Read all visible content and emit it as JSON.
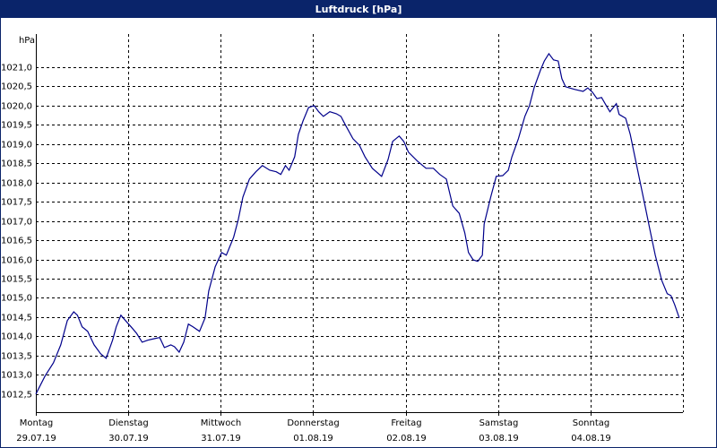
{
  "chart_data": {
    "type": "line",
    "title": "Luftdruck [hPa]",
    "y_label": "hPa",
    "xlim": [
      0,
      7
    ],
    "ylim": [
      1012.03,
      1021.86
    ],
    "grid": true,
    "xticks": [
      {
        "value": 0,
        "label": [
          "Montag",
          "29.07.19"
        ]
      },
      {
        "value": 1,
        "label": [
          "Dienstag",
          "30.07.19"
        ]
      },
      {
        "value": 2,
        "label": [
          "Mittwoch",
          "31.07.19"
        ]
      },
      {
        "value": 3,
        "label": [
          "Donnerstag",
          "01.08.19"
        ]
      },
      {
        "value": 4,
        "label": [
          "Freitag",
          "02.08.19"
        ]
      },
      {
        "value": 5,
        "label": [
          "Samstag",
          "03.08.19"
        ]
      },
      {
        "value": 6,
        "label": [
          "Sonntag",
          "04.08.19"
        ]
      }
    ],
    "yticks": [
      {
        "value": 1012.5,
        "label": "1012,5"
      },
      {
        "value": 1013,
        "label": "1013,0"
      },
      {
        "value": 1013.5,
        "label": "1013,5"
      },
      {
        "value": 1014,
        "label": "1014,0"
      },
      {
        "value": 1014.5,
        "label": "1014,5"
      },
      {
        "value": 1015,
        "label": "1015,0"
      },
      {
        "value": 1015.5,
        "label": "1015,5"
      },
      {
        "value": 1016,
        "label": "1016,0"
      },
      {
        "value": 1016.5,
        "label": "1016,5"
      },
      {
        "value": 1017,
        "label": "1017,0"
      },
      {
        "value": 1017.5,
        "label": "1017,5"
      },
      {
        "value": 1018,
        "label": "1018,0"
      },
      {
        "value": 1018.5,
        "label": "1018,5"
      },
      {
        "value": 1019,
        "label": "1019,0"
      },
      {
        "value": 1019.5,
        "label": "1019,5"
      },
      {
        "value": 1020,
        "label": "1020,0"
      },
      {
        "value": 1020.5,
        "label": "1020,5"
      },
      {
        "value": 1021,
        "label": "1021,0"
      }
    ],
    "series": [
      {
        "color": "#00008b",
        "x": [
          0,
          0.1,
          0.19,
          0.27,
          0.34,
          0.41,
          0.45,
          0.5,
          0.56,
          0.63,
          0.7,
          0.76,
          0.83,
          0.87,
          0.92,
          0.97,
          1.03,
          1.09,
          1.15,
          1.21,
          1.28,
          1.34,
          1.39,
          1.46,
          1.5,
          1.55,
          1.6,
          1.65,
          1.7,
          1.77,
          1.83,
          1.87,
          1.94,
          2.01,
          2.06,
          2.14,
          2.19,
          2.24,
          2.31,
          2.38,
          2.45,
          2.53,
          2.6,
          2.65,
          2.7,
          2.74,
          2.8,
          2.84,
          2.89,
          2.95,
          3.01,
          3.06,
          3.11,
          3.18,
          3.25,
          3.3,
          3.35,
          3.43,
          3.5,
          3.56,
          3.64,
          3.74,
          3.81,
          3.86,
          3.93,
          3.98,
          4.03,
          4.13,
          4.22,
          4.3,
          4.37,
          4.44,
          4.51,
          4.58,
          4.64,
          4.68,
          4.73,
          4.78,
          4.83,
          4.85,
          4.92,
          4.98,
          5.05,
          5.11,
          5.15,
          5.22,
          5.29,
          5.34,
          5.39,
          5.46,
          5.5,
          5.55,
          5.6,
          5.65,
          5.69,
          5.73,
          5.83,
          5.92,
          5.97,
          6.02,
          6.07,
          6.12,
          6.17,
          6.21,
          6.28,
          6.31,
          6.38,
          6.43,
          6.5,
          6.58,
          6.65,
          6.7,
          6.77,
          6.83,
          6.87,
          6.91,
          6.96
        ],
        "values": [
          1012.5,
          1012.97,
          1013.31,
          1013.78,
          1014.41,
          1014.64,
          1014.55,
          1014.25,
          1014.13,
          1013.78,
          1013.55,
          1013.43,
          1013.9,
          1014.25,
          1014.55,
          1014.41,
          1014.25,
          1014.08,
          1013.85,
          1013.9,
          1013.94,
          1013.97,
          1013.71,
          1013.78,
          1013.73,
          1013.59,
          1013.85,
          1014.32,
          1014.25,
          1014.13,
          1014.48,
          1015.18,
          1015.81,
          1016.18,
          1016.11,
          1016.58,
          1017.04,
          1017.62,
          1018.09,
          1018.28,
          1018.44,
          1018.32,
          1018.28,
          1018.21,
          1018.44,
          1018.32,
          1018.67,
          1019.25,
          1019.6,
          1019.95,
          1020.0,
          1019.84,
          1019.72,
          1019.84,
          1019.79,
          1019.72,
          1019.49,
          1019.14,
          1018.97,
          1018.67,
          1018.37,
          1018.16,
          1018.6,
          1019.07,
          1019.21,
          1019.07,
          1018.79,
          1018.55,
          1018.37,
          1018.37,
          1018.21,
          1018.09,
          1017.39,
          1017.2,
          1016.69,
          1016.18,
          1015.99,
          1015.95,
          1016.11,
          1016.92,
          1017.62,
          1018.16,
          1018.18,
          1018.32,
          1018.67,
          1019.14,
          1019.72,
          1020.0,
          1020.46,
          1020.93,
          1021.16,
          1021.35,
          1021.19,
          1021.16,
          1020.7,
          1020.49,
          1020.42,
          1020.37,
          1020.46,
          1020.35,
          1020.18,
          1020.21,
          1020.0,
          1019.84,
          1020.05,
          1019.77,
          1019.67,
          1019.25,
          1018.44,
          1017.51,
          1016.69,
          1016.11,
          1015.46,
          1015.11,
          1015.06,
          1014.83,
          1014.48
        ]
      }
    ]
  }
}
